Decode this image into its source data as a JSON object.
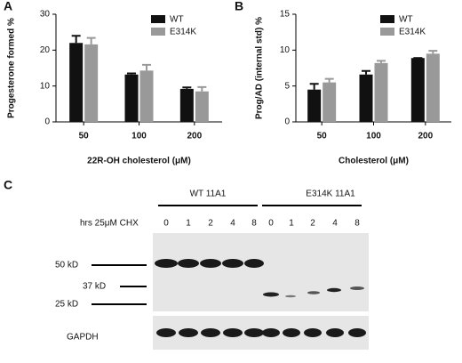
{
  "chart_data": [
    {
      "type": "bar",
      "panel": "A",
      "ylabel": "Progesterone formed %",
      "xlabel": "22R-OH cholesterol (μM)",
      "categories": [
        "50",
        "100",
        "200"
      ],
      "series": [
        {
          "name": "WT",
          "color": "#111111",
          "values": [
            22,
            13.2,
            9.2
          ],
          "errors": [
            2,
            0.3,
            0.4
          ]
        },
        {
          "name": "E314K",
          "color": "#999999",
          "values": [
            21.6,
            14.3,
            8.5
          ],
          "errors": [
            1.8,
            1.6,
            1.2
          ]
        }
      ],
      "ylim": [
        0,
        30
      ],
      "yticks": [
        0,
        10,
        20,
        30
      ],
      "legend": "top-right"
    },
    {
      "type": "bar",
      "panel": "B",
      "ylabel": "Prog/AD (internal std) %",
      "xlabel": "Cholesterol (μM)",
      "categories": [
        "50",
        "100",
        "200"
      ],
      "series": [
        {
          "name": "WT",
          "color": "#111111",
          "values": [
            4.5,
            6.6,
            8.9
          ],
          "errors": [
            0.8,
            0.5,
            0
          ]
        },
        {
          "name": "E314K",
          "color": "#999999",
          "values": [
            5.5,
            8.2,
            9.5
          ],
          "errors": [
            0.5,
            0.3,
            0.4
          ]
        }
      ],
      "ylim": [
        0,
        15
      ],
      "yticks": [
        0,
        5,
        10,
        15
      ],
      "legend": "top-right"
    }
  ],
  "blot": {
    "panel": "C",
    "groups": [
      "WT 11A1",
      "E314K 11A1"
    ],
    "treatment": "hrs 25μM CHX",
    "lanes": [
      "0",
      "1",
      "2",
      "4",
      "8",
      "0",
      "1",
      "2",
      "4",
      "8"
    ],
    "markers": [
      "50 kD",
      "37 kD",
      "25 kD"
    ],
    "loading_control": "GAPDH"
  }
}
